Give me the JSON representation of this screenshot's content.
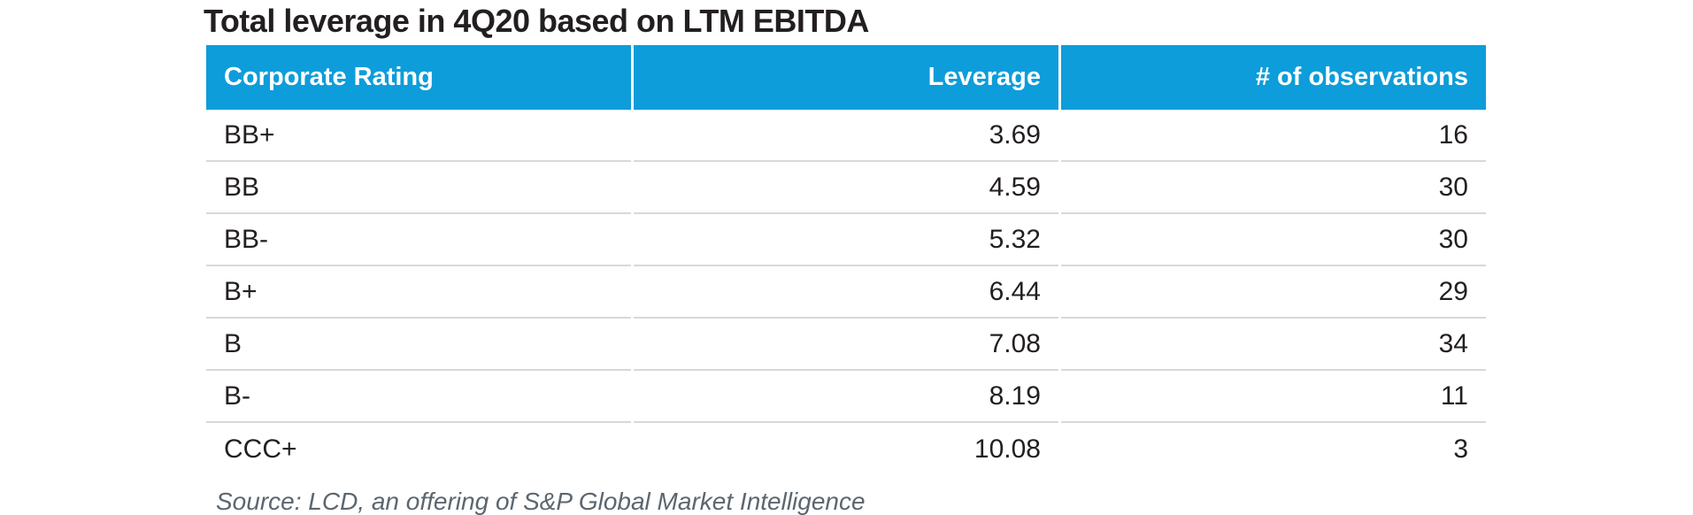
{
  "title": "Total leverage in 4Q20 based on LTM EBITDA",
  "source": "Source: LCD, an offering of S&P Global Market Intelligence",
  "colors": {
    "header_bg": "#0d9dda",
    "header_text": "#ffffff",
    "title_text": "#231f20",
    "body_text": "#231f20",
    "divider": "#d8d8d8",
    "source_text": "#5c6670"
  },
  "table": {
    "columns": [
      "Corporate Rating",
      "Leverage",
      "# of observations"
    ],
    "rows": [
      {
        "rating": "BB+",
        "leverage": "3.69",
        "observations": "16"
      },
      {
        "rating": "BB",
        "leverage": "4.59",
        "observations": "30"
      },
      {
        "rating": "BB-",
        "leverage": "5.32",
        "observations": "30"
      },
      {
        "rating": "B+",
        "leverage": "6.44",
        "observations": "29"
      },
      {
        "rating": "B",
        "leverage": "7.08",
        "observations": "34"
      },
      {
        "rating": "B-",
        "leverage": "8.19",
        "observations": "11"
      },
      {
        "rating": "CCC+",
        "leverage": "10.08",
        "observations": "3"
      }
    ]
  },
  "chart_data": {
    "type": "table",
    "title": "Total leverage in 4Q20 based on LTM EBITDA",
    "columns": [
      "Corporate Rating",
      "Leverage",
      "# of observations"
    ],
    "categories": [
      "BB+",
      "BB",
      "BB-",
      "B+",
      "B",
      "B-",
      "CCC+"
    ],
    "series": [
      {
        "name": "Leverage",
        "values": [
          3.69,
          4.59,
          5.32,
          6.44,
          7.08,
          8.19,
          10.08
        ]
      },
      {
        "name": "# of observations",
        "values": [
          16,
          30,
          30,
          29,
          34,
          11,
          3
        ]
      }
    ],
    "source": "Source: LCD, an offering of S&P Global Market Intelligence"
  }
}
